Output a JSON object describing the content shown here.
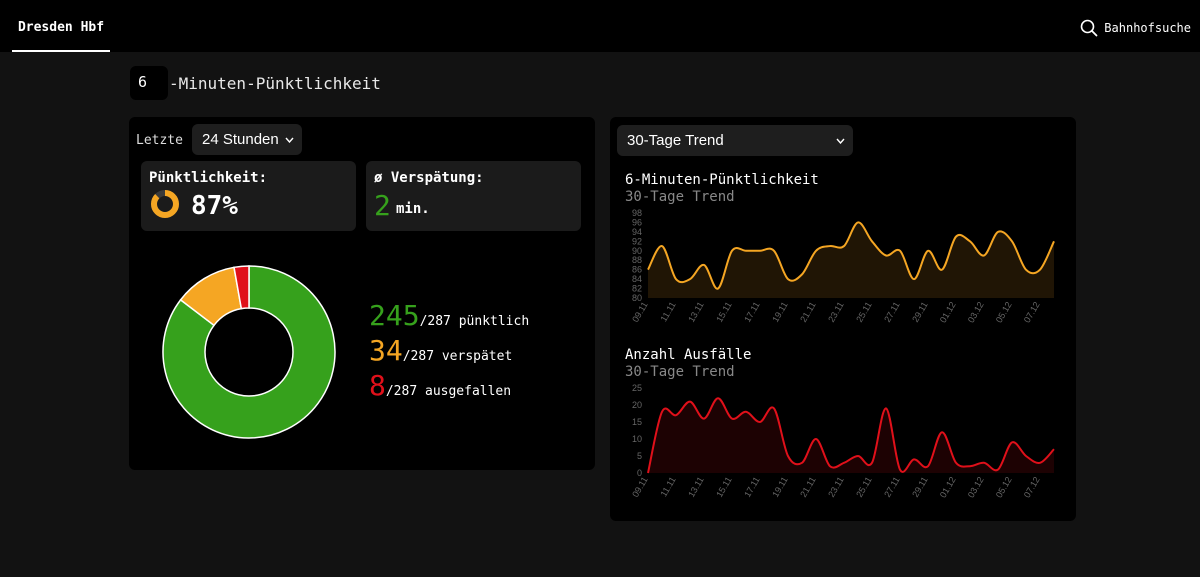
{
  "nav": {
    "station": "Dresden Hbf",
    "search_label": "Bahnhofsuche"
  },
  "heading": {
    "minutes": "6",
    "suffix": "-Minuten-Pünktlichkeit"
  },
  "left_panel": {
    "period_label": "Letzte",
    "period_value": "24 Stunden",
    "punctuality_label": "Pünktlichkeit:",
    "punctuality_value": "87%",
    "delay_label": "ø Verspätung:",
    "delay_value": "2",
    "delay_unit": "min.",
    "breakdown": [
      {
        "count": "245",
        "rest": "/287 pünktlich",
        "color": "#36a11c",
        "value": 245
      },
      {
        "count": "34",
        "rest": "/287 verspätet",
        "color": "#f5a623",
        "value": 34
      },
      {
        "count": "8",
        "rest": "/287 ausgefallen",
        "color": "#e0101a",
        "value": 8
      }
    ],
    "total": 287,
    "punctuality_fraction": 0.87
  },
  "right_panel": {
    "trend_select": "30-Tage Trend",
    "colors": {
      "orange": "#f5a623",
      "red": "#e0101a"
    }
  },
  "chart_data": [
    {
      "type": "area",
      "title": "6-Minuten-Pünktlichkeit",
      "subtitle": "30-Tage Trend",
      "x": [
        "09.11",
        "10.11",
        "11.11",
        "12.11",
        "13.11",
        "14.11",
        "15.11",
        "16.11",
        "17.11",
        "18.11",
        "19.11",
        "20.11",
        "21.11",
        "22.11",
        "23.11",
        "24.11",
        "25.11",
        "26.11",
        "27.11",
        "28.11",
        "29.11",
        "30.11",
        "01.12",
        "02.12",
        "03.12",
        "04.12",
        "05.12",
        "06.12",
        "07.12",
        "08.12"
      ],
      "x_tick_labels": [
        "09.11",
        "11.11",
        "13.11",
        "15.11",
        "17.11",
        "19.11",
        "21.11",
        "23.11",
        "25.11",
        "27.11",
        "29.11",
        "01.12",
        "03.12",
        "05.12",
        "07.12"
      ],
      "values": [
        86,
        91,
        84,
        84,
        87,
        82,
        90,
        90,
        90,
        90,
        84,
        85,
        90,
        91,
        91,
        96,
        92,
        89,
        90,
        84,
        90,
        86,
        93,
        92,
        89,
        94,
        92,
        86,
        86,
        92
      ],
      "yticks": [
        "98",
        "96",
        "94",
        "92",
        "90",
        "88",
        "86",
        "84",
        "82",
        "80"
      ],
      "ylim": [
        80,
        98
      ],
      "color": "#f5a623"
    },
    {
      "type": "area",
      "title": "Anzahl Ausfälle",
      "subtitle": "30-Tage Trend",
      "x": [
        "09.11",
        "10.11",
        "11.11",
        "12.11",
        "13.11",
        "14.11",
        "15.11",
        "16.11",
        "17.11",
        "18.11",
        "19.11",
        "20.11",
        "21.11",
        "22.11",
        "23.11",
        "24.11",
        "25.11",
        "26.11",
        "27.11",
        "28.11",
        "29.11",
        "30.11",
        "01.12",
        "02.12",
        "03.12",
        "04.12",
        "05.12",
        "06.12",
        "07.12",
        "08.12"
      ],
      "x_tick_labels": [
        "09.11",
        "11.11",
        "13.11",
        "15.11",
        "17.11",
        "19.11",
        "21.11",
        "23.11",
        "25.11",
        "27.11",
        "29.11",
        "01.12",
        "03.12",
        "05.12",
        "07.12"
      ],
      "values": [
        0,
        18,
        17,
        21,
        16,
        22,
        16,
        18,
        15,
        19,
        5,
        3,
        10,
        2,
        3,
        5,
        3,
        19,
        1,
        4,
        2,
        12,
        3,
        2,
        3,
        1,
        9,
        5,
        3,
        7
      ],
      "yticks": [
        "25",
        "20",
        "15",
        "10",
        "5",
        "0"
      ],
      "ylim": [
        0,
        25
      ],
      "color": "#e0101a"
    }
  ]
}
